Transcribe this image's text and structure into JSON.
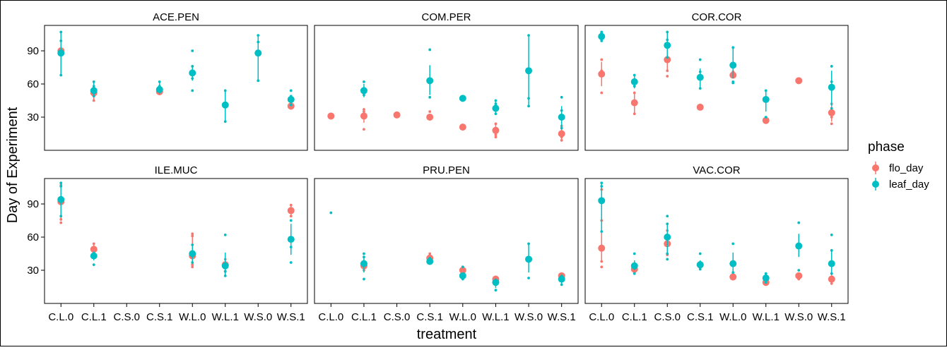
{
  "chart_data": {
    "type": "scatter",
    "subtype": "faceted pointrange",
    "ylabel": "Day of Experiment",
    "xlabel": "treatment",
    "categories": [
      "C.L.0",
      "C.L.1",
      "C.S.0",
      "C.S.1",
      "W.L.0",
      "W.L.1",
      "W.S.0",
      "W.S.1"
    ],
    "ylim": [
      0,
      113
    ],
    "yticks": [
      30,
      60,
      90
    ],
    "legend": {
      "title": "phase",
      "position": "right",
      "entries": [
        {
          "key": "flo_day",
          "label": "flo_day",
          "color": "#F8766D"
        },
        {
          "key": "leaf_day",
          "label": "leaf_day",
          "color": "#00BFC4"
        }
      ]
    },
    "facets": [
      {
        "name": "ACE.PEN",
        "series": {
          "flo_day": [
            {
              "x": "C.L.0",
              "mean": 90,
              "lo": 90,
              "hi": 90,
              "pts": [
                90
              ]
            },
            {
              "x": "C.L.1",
              "mean": 52,
              "lo": 45,
              "hi": 58,
              "pts": [
                45,
                49
              ]
            },
            {
              "x": "C.S.1",
              "mean": 53,
              "lo": 51,
              "hi": 56,
              "pts": [
                52
              ]
            },
            {
              "x": "W.S.1",
              "mean": 40,
              "lo": 37,
              "hi": 44,
              "pts": [
                38
              ]
            }
          ],
          "leaf_day": [
            {
              "x": "C.L.0",
              "mean": 88,
              "lo": 68,
              "hi": 107,
              "pts": [
                68,
                107,
                99
              ]
            },
            {
              "x": "C.L.1",
              "mean": 54,
              "lo": 48,
              "hi": 62,
              "pts": [
                62,
                58,
                49
              ]
            },
            {
              "x": "C.S.1",
              "mean": 55,
              "lo": 51,
              "hi": 62,
              "pts": [
                62,
                58
              ]
            },
            {
              "x": "W.L.0",
              "mean": 70,
              "lo": 63,
              "hi": 77,
              "pts": [
                90,
                76,
                65,
                54
              ]
            },
            {
              "x": "W.L.1",
              "mean": 41,
              "lo": 26,
              "hi": 54,
              "pts": [
                54,
                26
              ]
            },
            {
              "x": "W.S.0",
              "mean": 88,
              "lo": 63,
              "hi": 104,
              "pts": [
                104,
                98,
                63
              ]
            },
            {
              "x": "W.S.1",
              "mean": 46,
              "lo": 42,
              "hi": 50,
              "pts": [
                54,
                49,
                41
              ]
            }
          ]
        }
      },
      {
        "name": "COM.PER",
        "series": {
          "flo_day": [
            {
              "x": "C.L.0",
              "mean": 31,
              "lo": 31,
              "hi": 31,
              "pts": [
                31
              ]
            },
            {
              "x": "C.L.1",
              "mean": 31,
              "lo": 25,
              "hi": 37,
              "pts": [
                19,
                37,
                35
              ]
            },
            {
              "x": "C.S.0",
              "mean": 32,
              "lo": 32,
              "hi": 32,
              "pts": [
                32
              ]
            },
            {
              "x": "C.S.1",
              "mean": 30,
              "lo": 28,
              "hi": 32,
              "pts": [
                35,
                28
              ]
            },
            {
              "x": "W.L.0",
              "mean": 21,
              "lo": 21,
              "hi": 21,
              "pts": [
                21
              ]
            },
            {
              "x": "W.L.1",
              "mean": 18,
              "lo": 12,
              "hi": 24,
              "pts": [
                12,
                14,
                24
              ]
            },
            {
              "x": "W.S.1",
              "mean": 15,
              "lo": 9,
              "hi": 22,
              "pts": [
                9,
                12,
                22
              ]
            }
          ],
          "leaf_day": [
            {
              "x": "C.L.1",
              "mean": 54,
              "lo": 48,
              "hi": 60,
              "pts": [
                62,
                50
              ]
            },
            {
              "x": "C.S.1",
              "mean": 63,
              "lo": 50,
              "hi": 77,
              "pts": [
                91,
                48
              ]
            },
            {
              "x": "W.L.0",
              "mean": 47,
              "lo": 47,
              "hi": 47,
              "pts": [
                47
              ]
            },
            {
              "x": "W.L.1",
              "mean": 38,
              "lo": 32,
              "hi": 44,
              "pts": [
                45,
                42,
                33
              ]
            },
            {
              "x": "W.S.0",
              "mean": 72,
              "lo": 40,
              "hi": 104,
              "pts": [
                104,
                47,
                40
              ]
            },
            {
              "x": "W.S.1",
              "mean": 30,
              "lo": 20,
              "hi": 40,
              "pts": [
                48,
                36,
                20
              ]
            }
          ]
        }
      },
      {
        "name": "COR.COR",
        "series": {
          "flo_day": [
            {
              "x": "C.L.0",
              "mean": 69,
              "lo": 58,
              "hi": 80,
              "pts": [
                82,
                72,
                52
              ]
            },
            {
              "x": "C.L.1",
              "mean": 43,
              "lo": 34,
              "hi": 52,
              "pts": [
                33,
                52
              ]
            },
            {
              "x": "C.S.0",
              "mean": 82,
              "lo": 72,
              "hi": 92,
              "pts": [
                93,
                72,
                67
              ]
            },
            {
              "x": "C.S.1",
              "mean": 39,
              "lo": 39,
              "hi": 39,
              "pts": [
                39
              ]
            },
            {
              "x": "W.L.0",
              "mean": 68,
              "lo": 66,
              "hi": 71,
              "pts": [
                71
              ]
            },
            {
              "x": "W.L.1",
              "mean": 27,
              "lo": 27,
              "hi": 27,
              "pts": [
                27
              ]
            },
            {
              "x": "W.S.0",
              "mean": 63,
              "lo": 63,
              "hi": 63,
              "pts": [
                63
              ]
            },
            {
              "x": "W.S.1",
              "mean": 34,
              "lo": 26,
              "hi": 42,
              "pts": [
                24,
                30,
                42
              ]
            }
          ],
          "leaf_day": [
            {
              "x": "C.L.0",
              "mean": 103,
              "lo": 99,
              "hi": 107,
              "pts": [
                107,
                106,
                99
              ]
            },
            {
              "x": "C.L.1",
              "mean": 62,
              "lo": 56,
              "hi": 67,
              "pts": [
                68,
                58
              ]
            },
            {
              "x": "C.S.0",
              "mean": 95,
              "lo": 84,
              "hi": 106,
              "pts": [
                107,
                100,
                84
              ]
            },
            {
              "x": "C.S.1",
              "mean": 66,
              "lo": 56,
              "hi": 74,
              "pts": [
                82,
                71,
                56
              ]
            },
            {
              "x": "W.L.0",
              "mean": 77,
              "lo": 65,
              "hi": 93,
              "pts": [
                93,
                75,
                62,
                61
              ]
            },
            {
              "x": "W.L.1",
              "mean": 46,
              "lo": 35,
              "hi": 53,
              "pts": [
                54,
                30
              ]
            },
            {
              "x": "W.S.1",
              "mean": 57,
              "lo": 40,
              "hi": 72,
              "pts": [
                76,
                62,
                38
              ]
            }
          ]
        }
      },
      {
        "name": "ILE.MUC",
        "series": {
          "flo_day": [
            {
              "x": "C.L.0",
              "mean": 92,
              "lo": 76,
              "hi": 107,
              "pts": [
                107,
                76,
                73
              ]
            },
            {
              "x": "C.L.1",
              "mean": 49,
              "lo": 45,
              "hi": 54,
              "pts": [
                54
              ]
            },
            {
              "x": "W.L.0",
              "mean": 43,
              "lo": 35,
              "hi": 61,
              "pts": [
                63,
                61,
                35,
                33
              ]
            },
            {
              "x": "W.L.1",
              "mean": 35,
              "lo": 29,
              "hi": 40,
              "pts": [
                29,
                40
              ]
            },
            {
              "x": "W.S.1",
              "mean": 84,
              "lo": 79,
              "hi": 89,
              "pts": [
                89,
                79
              ]
            }
          ],
          "leaf_day": [
            {
              "x": "C.L.0",
              "mean": 94,
              "lo": 78,
              "hi": 109,
              "pts": [
                109,
                106,
                79
              ]
            },
            {
              "x": "C.L.1",
              "mean": 43,
              "lo": 39,
              "hi": 47,
              "pts": [
                35
              ]
            },
            {
              "x": "W.L.0",
              "mean": 45,
              "lo": 37,
              "hi": 53,
              "pts": [
                53,
                37
              ]
            },
            {
              "x": "W.L.1",
              "mean": 34,
              "lo": 25,
              "hi": 46,
              "pts": [
                62,
                29,
                25
              ]
            },
            {
              "x": "W.S.1",
              "mean": 58,
              "lo": 44,
              "hi": 72,
              "pts": [
                75,
                51,
                37
              ]
            }
          ]
        }
      },
      {
        "name": "PRU.PEN",
        "series": {
          "flo_day": [
            {
              "x": "C.L.1",
              "mean": 34,
              "lo": 30,
              "hi": 38,
              "pts": [
                30,
                38
              ]
            },
            {
              "x": "C.S.1",
              "mean": 41,
              "lo": 38,
              "hi": 45,
              "pts": [
                45,
                38
              ]
            },
            {
              "x": "W.L.0",
              "mean": 30,
              "lo": 27,
              "hi": 33,
              "pts": [
                33,
                27
              ]
            },
            {
              "x": "W.L.1",
              "mean": 22,
              "lo": 21,
              "hi": 23,
              "pts": [
                22
              ]
            },
            {
              "x": "W.S.1",
              "mean": 25,
              "lo": 24,
              "hi": 26,
              "pts": [
                25
              ]
            }
          ],
          "leaf_day": [
            {
              "x": "C.L.0",
              "mean": null,
              "lo": null,
              "hi": null,
              "pts": [
                82
              ]
            },
            {
              "x": "C.L.1",
              "mean": 36,
              "lo": 28,
              "hi": 42,
              "pts": [
                45,
                42,
                22
              ]
            },
            {
              "x": "C.S.1",
              "mean": 38,
              "lo": 36,
              "hi": 40,
              "pts": [
                41,
                37
              ]
            },
            {
              "x": "W.L.0",
              "mean": 25,
              "lo": 22,
              "hi": 28,
              "pts": [
                33,
                22
              ]
            },
            {
              "x": "W.L.1",
              "mean": 19,
              "lo": 14,
              "hi": 23,
              "pts": [
                12
              ]
            },
            {
              "x": "W.S.0",
              "mean": 40,
              "lo": 28,
              "hi": 54,
              "pts": [
                54,
                23
              ]
            },
            {
              "x": "W.S.1",
              "mean": 22,
              "lo": 18,
              "hi": 25,
              "pts": [
                25,
                17
              ]
            }
          ]
        }
      },
      {
        "name": "VAC.COR",
        "series": {
          "flo_day": [
            {
              "x": "C.L.0",
              "mean": 50,
              "lo": 38,
              "hi": 75,
              "pts": [
                103,
                75,
                38,
                33
              ]
            },
            {
              "x": "C.L.1",
              "mean": 31,
              "lo": 28,
              "hi": 34,
              "pts": [
                28
              ]
            },
            {
              "x": "C.S.0",
              "mean": 54,
              "lo": 44,
              "hi": 64,
              "pts": [
                66,
                44
              ]
            },
            {
              "x": "C.S.1",
              "mean": 35,
              "lo": 33,
              "hi": 37,
              "pts": [
                33
              ]
            },
            {
              "x": "W.L.0",
              "mean": 24,
              "lo": 21,
              "hi": 26,
              "pts": [
                22
              ]
            },
            {
              "x": "W.L.1",
              "mean": 19,
              "lo": 17,
              "hi": 21,
              "pts": [
                18
              ]
            },
            {
              "x": "W.S.0",
              "mean": 25,
              "lo": 22,
              "hi": 28,
              "pts": [
                22
              ]
            },
            {
              "x": "W.S.1",
              "mean": 22,
              "lo": 18,
              "hi": 26,
              "pts": [
                18
              ]
            }
          ],
          "leaf_day": [
            {
              "x": "C.L.0",
              "mean": 93,
              "lo": 65,
              "hi": 109,
              "pts": [
                109,
                106,
                65
              ]
            },
            {
              "x": "C.L.1",
              "mean": 34,
              "lo": 30,
              "hi": 39,
              "pts": [
                45,
                27
              ]
            },
            {
              "x": "C.S.0",
              "mean": 60,
              "lo": 45,
              "hi": 73,
              "pts": [
                79,
                72,
                45,
                40
              ]
            },
            {
              "x": "C.S.1",
              "mean": 35,
              "lo": 32,
              "hi": 39,
              "pts": [
                45,
                31
              ]
            },
            {
              "x": "W.L.0",
              "mean": 36,
              "lo": 28,
              "hi": 46,
              "pts": [
                54,
                28
              ]
            },
            {
              "x": "W.L.1",
              "mean": 23,
              "lo": 19,
              "hi": 27,
              "pts": [
                27,
                19
              ]
            },
            {
              "x": "W.S.0",
              "mean": 52,
              "lo": 42,
              "hi": 63,
              "pts": [
                73,
                30
              ]
            },
            {
              "x": "W.S.1",
              "mean": 36,
              "lo": 26,
              "hi": 48,
              "pts": [
                62,
                48,
                27
              ]
            }
          ]
        }
      }
    ]
  }
}
